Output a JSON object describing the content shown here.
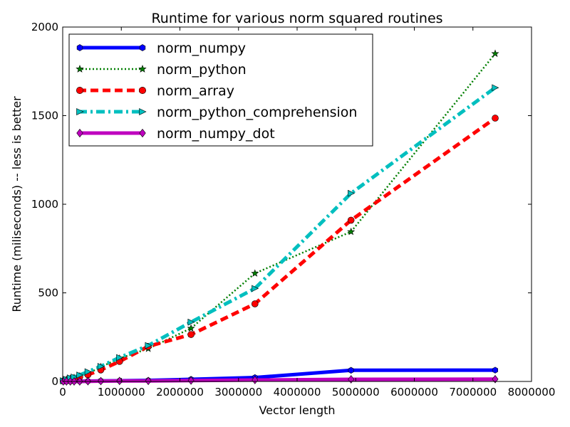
{
  "chart_data": {
    "type": "line",
    "title": "Runtime for various norm squared routines",
    "xlabel": "Vector length",
    "ylabel": "Runtime (miliseconds) -- less is better",
    "xlim": [
      0,
      8000000
    ],
    "ylim": [
      0,
      2000
    ],
    "xticks": [
      0,
      1000000,
      2000000,
      3000000,
      4000000,
      5000000,
      6000000,
      7000000,
      8000000
    ],
    "xtick_labels": [
      "0",
      "1000000",
      "2000000",
      "3000000",
      "4000000",
      "5000000",
      "6000000",
      "7000000",
      "8000000"
    ],
    "yticks": [
      0,
      500,
      1000,
      1500,
      2000
    ],
    "ytick_labels": [
      "0",
      "500",
      "1000",
      "1500",
      "2000"
    ],
    "grid": false,
    "legend_position": "top-left",
    "x": [
      10000,
      65000,
      130000,
      195000,
      290000,
      430000,
      650000,
      970000,
      1460000,
      2190000,
      3280000,
      4920000,
      7380000
    ],
    "series": [
      {
        "name": "norm_numpy",
        "color": "#0000ff",
        "linestyle": "solid",
        "marker": "hexagon",
        "values": [
          0,
          0,
          0,
          1,
          1,
          2,
          3,
          4,
          6,
          12,
          22,
          63,
          64
        ]
      },
      {
        "name": "norm_python",
        "color": "#007f00",
        "linestyle": "dotted",
        "marker": "star",
        "values": [
          3,
          11,
          16,
          21,
          30,
          44,
          82,
          130,
          185,
          300,
          610,
          845,
          1850
        ]
      },
      {
        "name": "norm_array",
        "color": "#ff0000",
        "linestyle": "dashed",
        "marker": "circle",
        "values": [
          2,
          8,
          14,
          18,
          26,
          38,
          65,
          113,
          198,
          265,
          438,
          910,
          1486
        ]
      },
      {
        "name": "norm_python_comprehension",
        "color": "#00bfbf",
        "linestyle": "dashdot",
        "marker": "triangle-right",
        "values": [
          4,
          12,
          20,
          25,
          36,
          55,
          85,
          135,
          203,
          335,
          525,
          1062,
          1658
        ]
      },
      {
        "name": "norm_numpy_dot",
        "color": "#bf00bf",
        "linestyle": "solid",
        "marker": "diamond",
        "values": [
          0,
          0,
          0,
          0,
          0,
          1,
          2,
          3,
          3,
          5,
          8,
          12,
          13
        ]
      }
    ]
  }
}
